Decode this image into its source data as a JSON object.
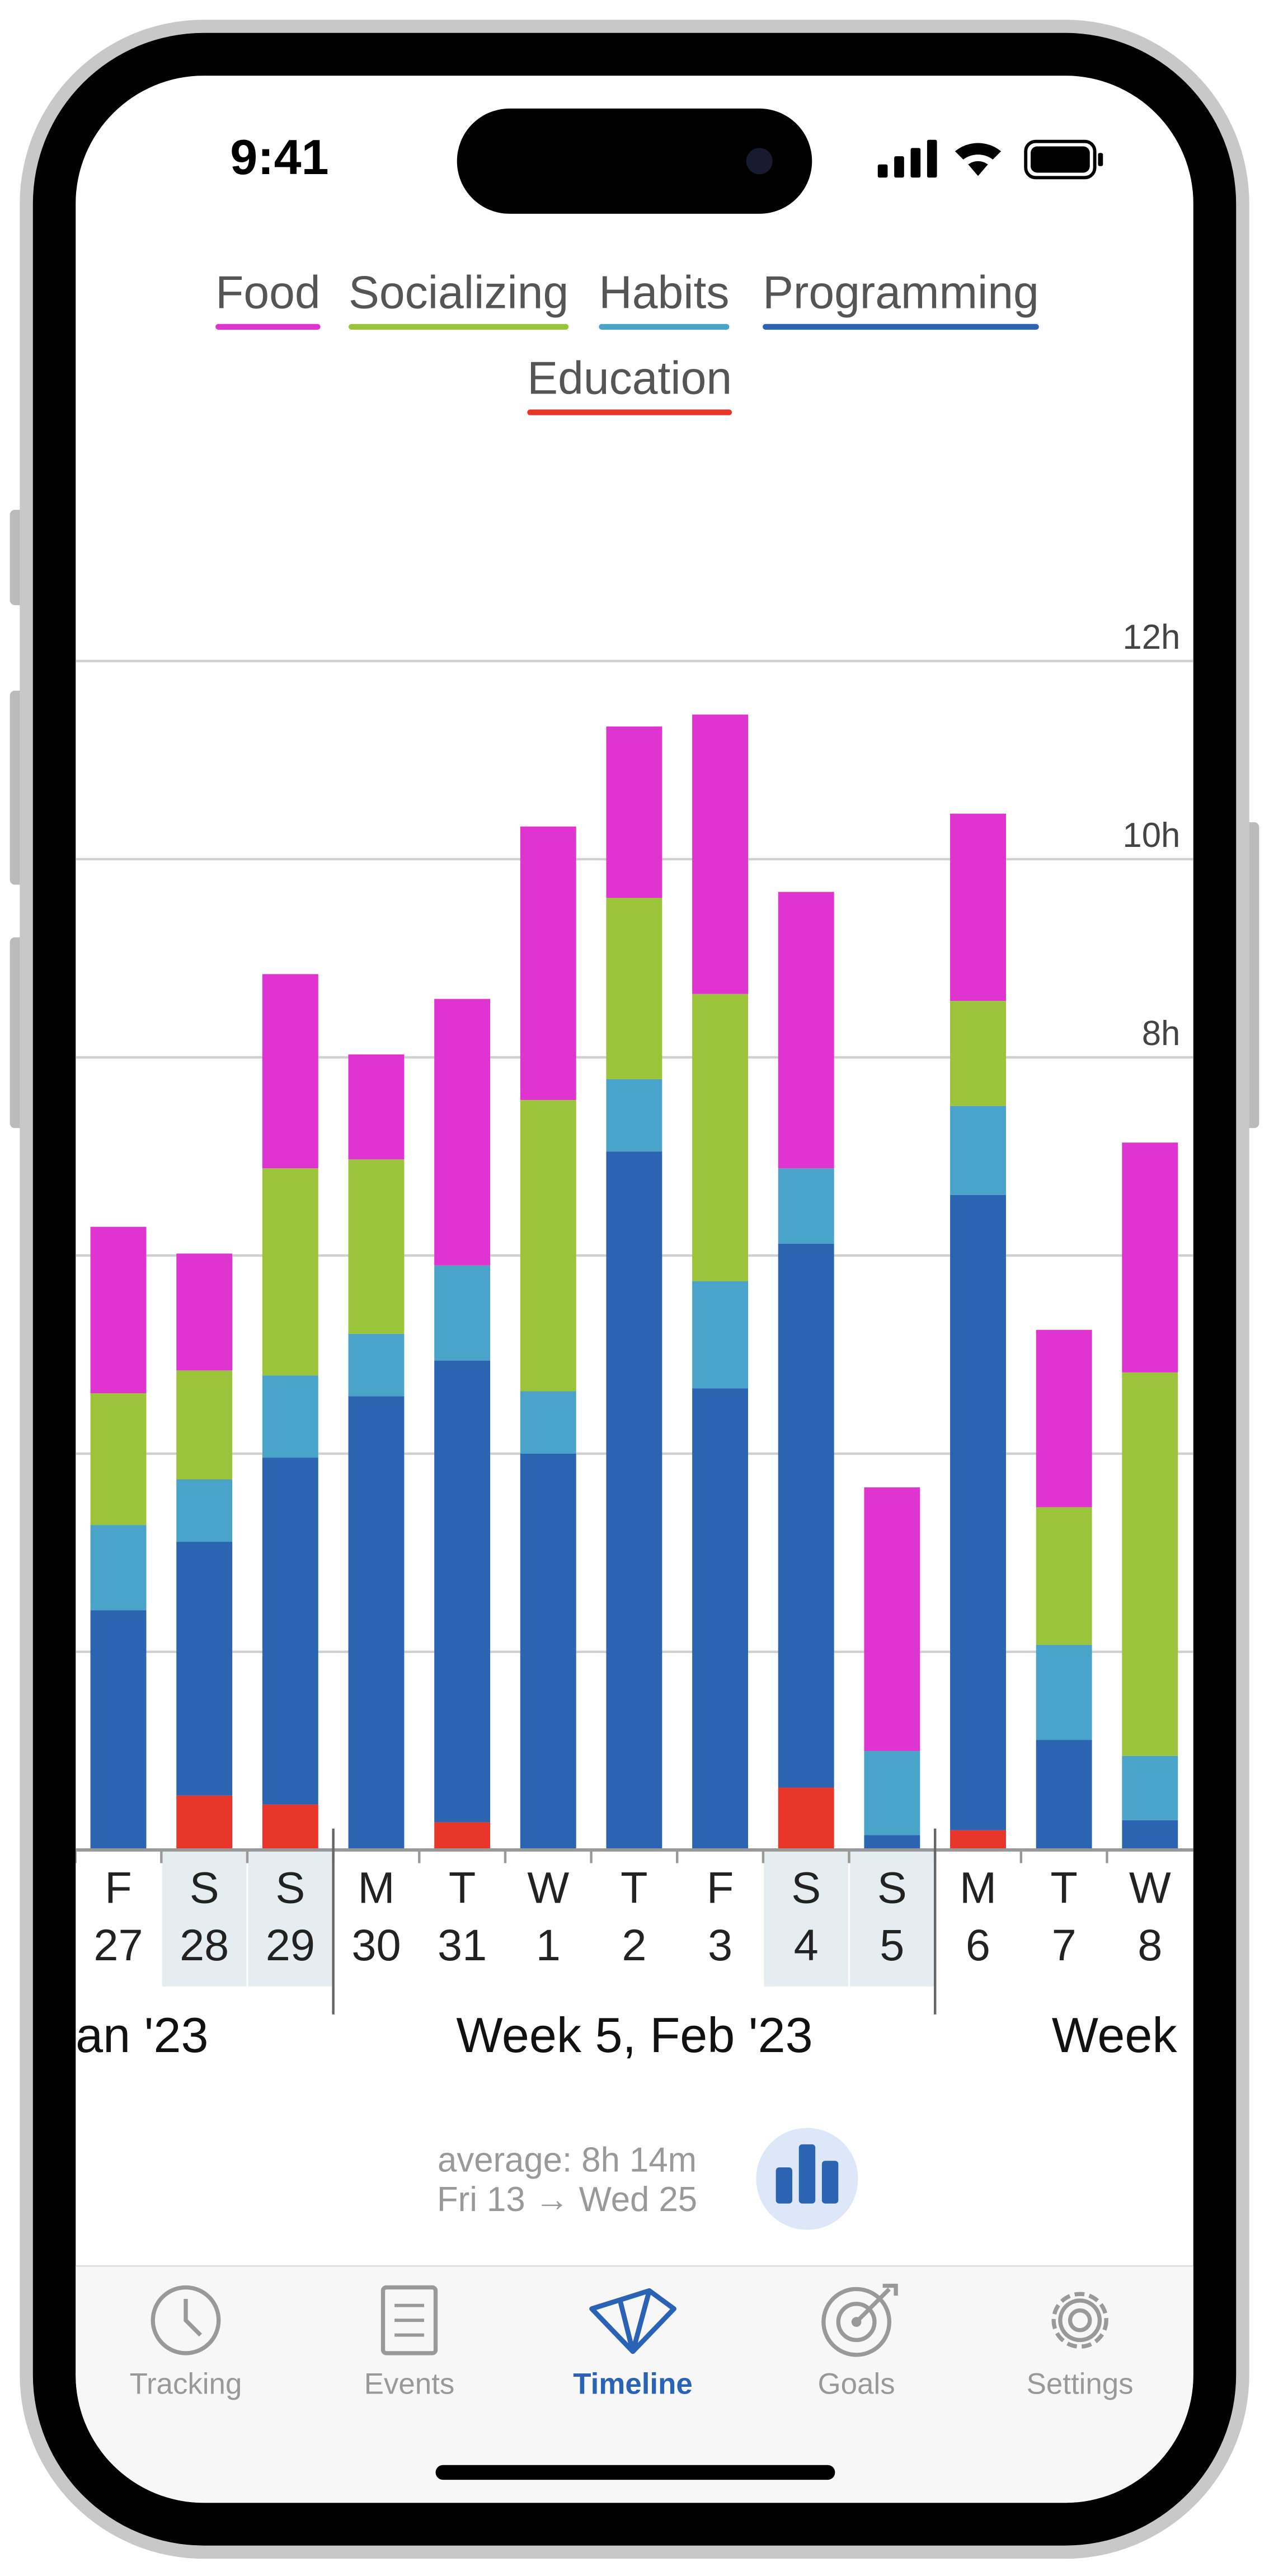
{
  "status_bar": {
    "time": "9:41"
  },
  "chart_data": {
    "type": "stacked_bar",
    "categories": [
      "F",
      "S",
      "S",
      "M",
      "T",
      "W",
      "T",
      "F",
      "S",
      "S",
      "M",
      "T",
      "W"
    ],
    "category_dates": [
      "27",
      "28",
      "29",
      "30",
      "31",
      "1",
      "2",
      "3",
      "4",
      "5",
      "6",
      "7",
      "8"
    ],
    "highlighted": [
      false,
      true,
      true,
      false,
      false,
      false,
      false,
      false,
      true,
      true,
      false,
      false,
      false
    ],
    "week_labels": [
      "an '23",
      "Week 5, Feb '23",
      "Week"
    ],
    "series": [
      {
        "name": "Education",
        "color": "#e8362a",
        "values": [
          0,
          0.55,
          0.46,
          0,
          0.28,
          0,
          0,
          0,
          0.63,
          0,
          0.2,
          0,
          0
        ]
      },
      {
        "name": "Programming",
        "color": "#2b65b2",
        "values": [
          2.42,
          2.56,
          3.5,
          4.58,
          4.66,
          4.0,
          7.05,
          4.66,
          5.49,
          0.15,
          6.41,
          1.11,
          0.3
        ]
      },
      {
        "name": "Habits",
        "color": "#4aa3c8",
        "values": [
          0.86,
          0.63,
          0.83,
          0.63,
          0.96,
          0.63,
          0.73,
          1.08,
          0.76,
          0.85,
          0.9,
          0.96,
          0.65
        ]
      },
      {
        "name": "Socializing",
        "color": "#9bc43a",
        "values": [
          1.33,
          1.1,
          2.09,
          1.76,
          0,
          2.94,
          1.83,
          2.9,
          0,
          0,
          1.06,
          1.39,
          3.87
        ]
      },
      {
        "name": "Food",
        "color": "#e034d0",
        "values": [
          1.68,
          1.18,
          1.96,
          1.06,
          2.69,
          2.76,
          1.73,
          2.82,
          2.79,
          2.66,
          1.89,
          1.79,
          2.32
        ]
      }
    ],
    "ylim": [
      0,
      14
    ],
    "yticks": [
      {
        "value": 8,
        "label": "8h"
      },
      {
        "value": 10,
        "label": "10h"
      },
      {
        "value": 12,
        "label": "12h"
      }
    ],
    "ygrid": [
      2,
      4,
      6,
      8,
      10,
      12
    ],
    "grid": true
  },
  "summary": {
    "average": "average: 8h 14m",
    "range": "Fri 13 → Wed 25"
  },
  "tab_bar": {
    "tabs": [
      "Tracking",
      "Events",
      "Timeline",
      "Goals",
      "Settings"
    ],
    "selected": 2
  }
}
